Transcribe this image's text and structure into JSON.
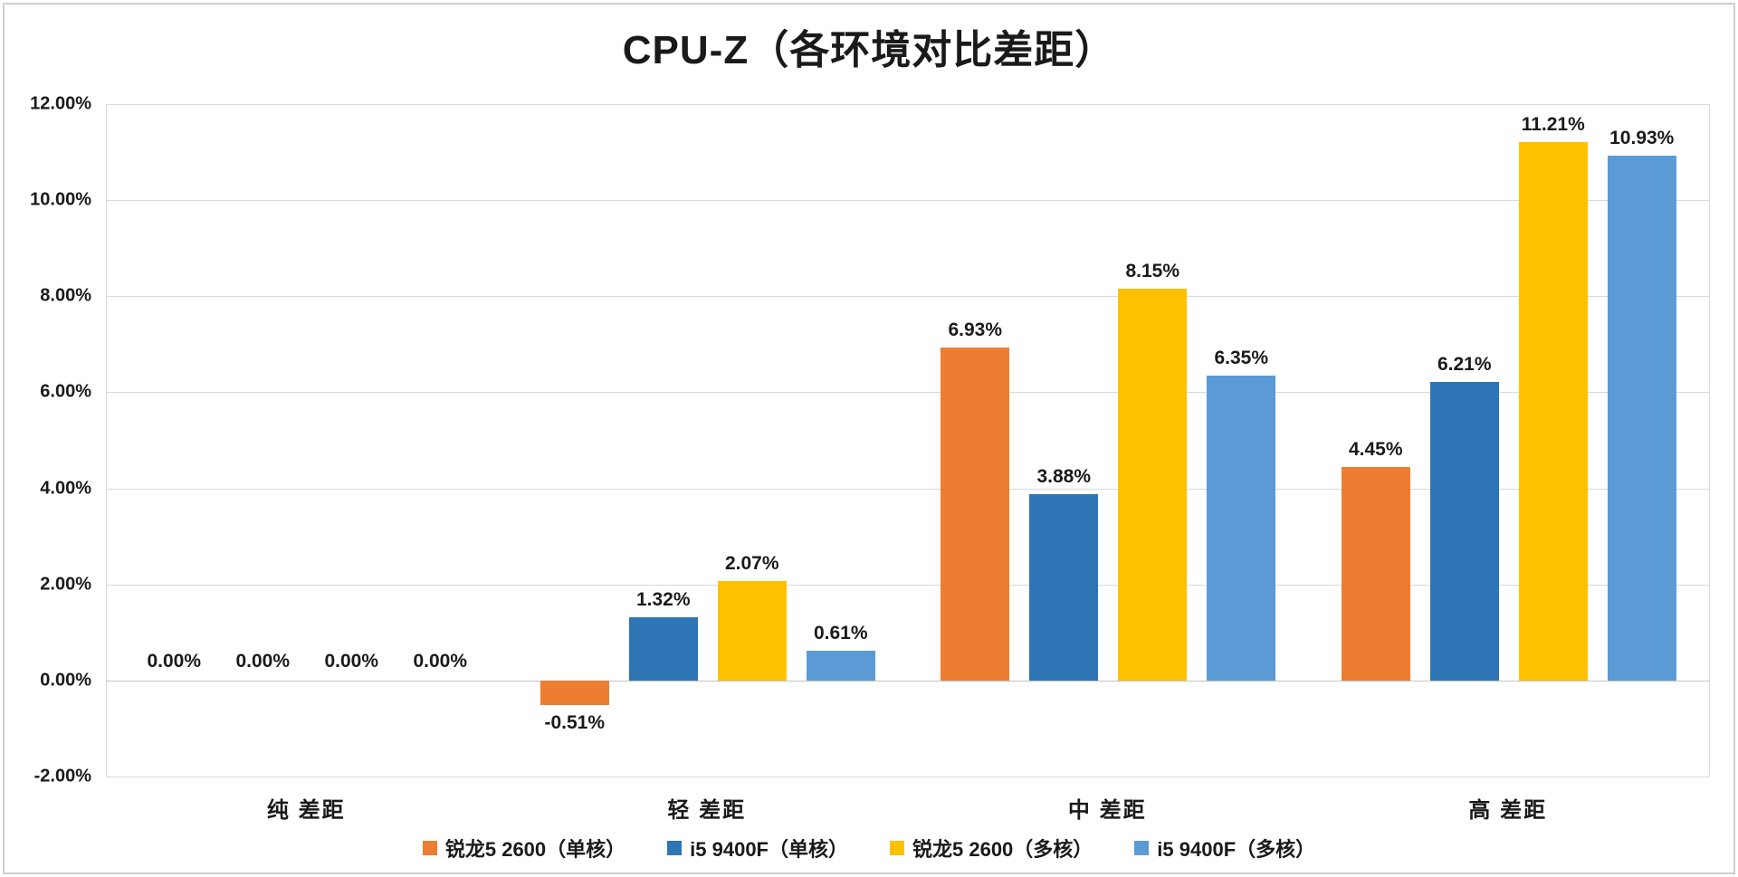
{
  "chart_data": {
    "type": "bar",
    "title": "CPU-Z（各环境对比差距）",
    "categories": [
      "纯 差距",
      "轻 差距",
      "中 差距",
      "高 差距"
    ],
    "series": [
      {
        "name": "锐龙5 2600（单核）",
        "color": "#ED7D31",
        "values": [
          0.0,
          -0.51,
          6.93,
          4.45
        ]
      },
      {
        "name": "i5 9400F（单核）",
        "color": "#2E75B6",
        "values": [
          0.0,
          1.32,
          3.88,
          6.21
        ]
      },
      {
        "name": "锐龙5 2600（多核）",
        "color": "#FFC000",
        "values": [
          0.0,
          2.07,
          8.15,
          11.21
        ]
      },
      {
        "name": "i5 9400F（多核）",
        "color": "#5B9BD5",
        "values": [
          0.0,
          0.61,
          6.35,
          10.93
        ]
      }
    ],
    "xlabel": "",
    "ylabel": "",
    "ylim": [
      -2,
      12
    ],
    "ytick_step": 2,
    "ytick_labels": [
      "12.00%",
      "10.00%",
      "8.00%",
      "6.00%",
      "4.00%",
      "2.00%",
      "0.00%",
      "-2.00%"
    ],
    "value_label_format": "0.00%",
    "grid": true,
    "legend_position": "bottom"
  }
}
